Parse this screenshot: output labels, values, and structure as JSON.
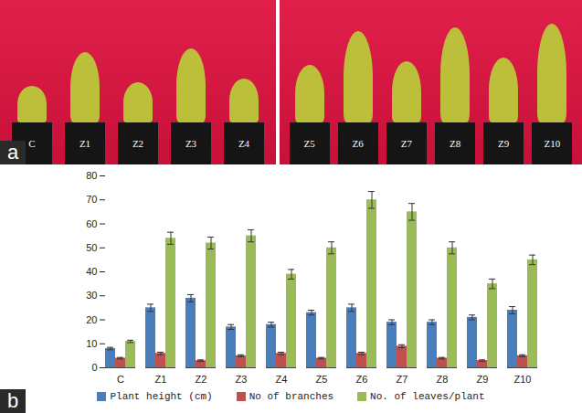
{
  "photo": {
    "label": "a",
    "left": [
      "C",
      "Z1",
      "Z2",
      "Z3",
      "Z4"
    ],
    "right": [
      "Z5",
      "Z6",
      "Z7",
      "Z8",
      "Z9",
      "Z10"
    ]
  },
  "chart_data": {
    "type": "bar",
    "annotations": [
      "b"
    ],
    "categories": [
      "C",
      "Z1",
      "Z2",
      "Z3",
      "Z4",
      "Z5",
      "Z6",
      "Z7",
      "Z8",
      "Z9",
      "Z10"
    ],
    "series": [
      {
        "name": "Plant height (cm)",
        "color": "#4a7ebb",
        "values": [
          8,
          25,
          29,
          17,
          18,
          23,
          25,
          19,
          19,
          21,
          24
        ],
        "errors": [
          0.5,
          1.5,
          1.5,
          1,
          1,
          1,
          1.5,
          1,
          1,
          1,
          1.5
        ]
      },
      {
        "name": "No of branches",
        "color": "#c0504d",
        "values": [
          4,
          6,
          3,
          5,
          6,
          4,
          6,
          9,
          4,
          3,
          5
        ],
        "errors": [
          0.3,
          0.5,
          0.3,
          0.4,
          0.5,
          0.3,
          0.5,
          0.6,
          0.3,
          0.3,
          0.4
        ]
      },
      {
        "name": "No. of leaves/plant",
        "color": "#9bbb59",
        "values": [
          11,
          54,
          52,
          55,
          39,
          50,
          70,
          65,
          50,
          35,
          45
        ],
        "errors": [
          0.5,
          2.5,
          2.5,
          2.5,
          2,
          2.5,
          3.5,
          3.5,
          2.5,
          2,
          2
        ]
      }
    ],
    "ylim": [
      0,
      80
    ],
    "yticks": [
      0,
      10,
      20,
      30,
      40,
      50,
      60,
      70,
      80
    ],
    "grid": false,
    "legend": "bottom"
  }
}
